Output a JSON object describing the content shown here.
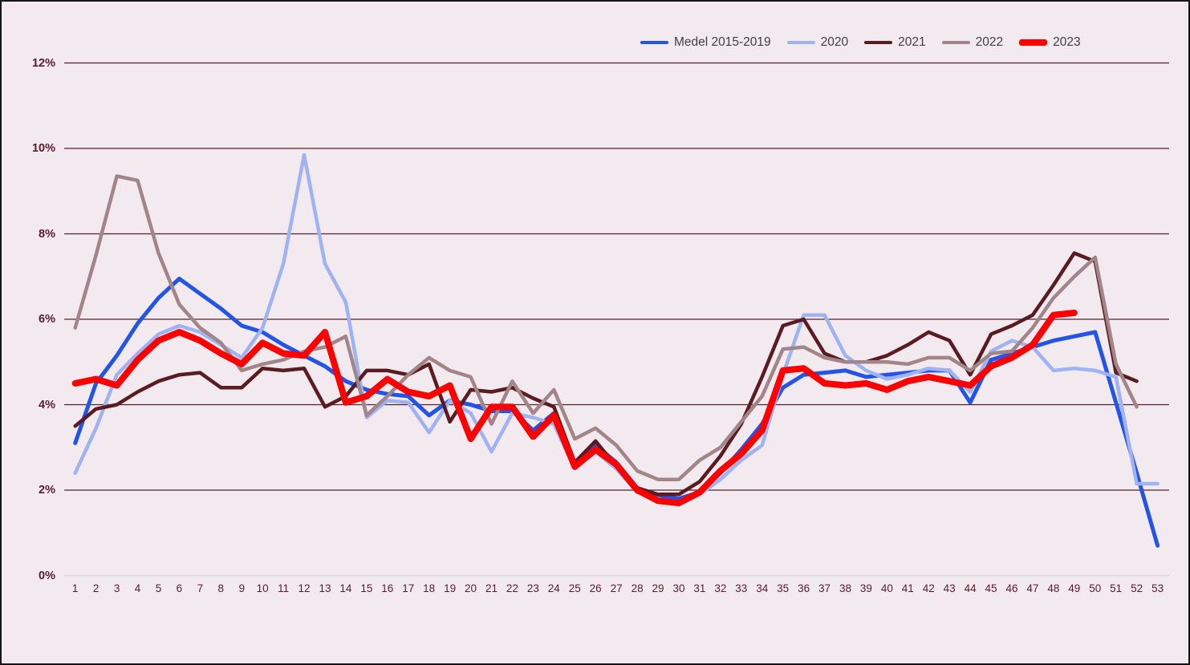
{
  "page": {
    "background_color": "#f2eaee",
    "border_color": "#141414"
  },
  "chart_data": {
    "type": "line",
    "title": "",
    "xlabel": "",
    "ylabel": "",
    "x": [
      1,
      2,
      3,
      4,
      5,
      6,
      7,
      8,
      9,
      10,
      11,
      12,
      13,
      14,
      15,
      16,
      17,
      18,
      19,
      20,
      21,
      22,
      23,
      24,
      25,
      26,
      27,
      28,
      29,
      30,
      31,
      32,
      33,
      34,
      35,
      36,
      37,
      38,
      39,
      40,
      41,
      42,
      43,
      44,
      45,
      46,
      47,
      48,
      49,
      50,
      51,
      52,
      53
    ],
    "y_ticks": [
      "0%",
      "2%",
      "4%",
      "6%",
      "8%",
      "10%",
      "12%"
    ],
    "ylim": [
      0,
      12
    ],
    "grid": "horizontal",
    "gridline_color": "#57222d",
    "zero_line_color": "#d9d9d9",
    "axis_label_color": "#5a1c2b",
    "legend_position": "top-right",
    "legend_text_color": "#3f4045",
    "series": [
      {
        "name": "Medel 2015-2019",
        "color": "#2255e6",
        "width": 5,
        "values": [
          3.1,
          4.5,
          5.15,
          5.9,
          6.5,
          6.95,
          6.6,
          6.25,
          5.85,
          5.7,
          5.4,
          5.15,
          4.9,
          4.55,
          4.35,
          4.25,
          4.2,
          3.75,
          4.1,
          4.0,
          3.85,
          3.85,
          3.4,
          3.8,
          2.6,
          3.05,
          2.65,
          2.05,
          1.85,
          1.8,
          1.95,
          2.4,
          2.95,
          3.55,
          4.4,
          4.7,
          4.75,
          4.8,
          4.65,
          4.7,
          4.75,
          4.8,
          4.8,
          4.05,
          5.05,
          5.2,
          5.35,
          5.5,
          5.6,
          5.7,
          4.05,
          2.4,
          0.7
        ]
      },
      {
        "name": "2020",
        "color": "#9fb3f4",
        "width": 4.5,
        "values": [
          2.4,
          3.45,
          4.7,
          5.2,
          5.65,
          5.85,
          5.7,
          5.4,
          5.1,
          5.8,
          7.3,
          9.85,
          7.3,
          6.4,
          3.7,
          4.1,
          4.05,
          3.35,
          4.1,
          3.8,
          2.9,
          3.8,
          3.7,
          3.55,
          2.5,
          2.9,
          2.5,
          1.95,
          1.8,
          1.65,
          1.9,
          2.25,
          2.7,
          3.05,
          4.7,
          6.1,
          6.1,
          5.15,
          4.8,
          4.6,
          4.7,
          4.85,
          4.8,
          4.3,
          5.25,
          5.5,
          5.35,
          4.8,
          4.85,
          4.8,
          4.65,
          2.15,
          2.15
        ]
      },
      {
        "name": "2021",
        "color": "#5a1b22",
        "width": 4.5,
        "values": [
          3.5,
          3.9,
          4.0,
          4.3,
          4.55,
          4.7,
          4.75,
          4.4,
          4.4,
          4.85,
          4.8,
          4.85,
          3.95,
          4.2,
          4.8,
          4.8,
          4.7,
          4.95,
          3.6,
          4.35,
          4.3,
          4.4,
          4.15,
          3.95,
          2.65,
          3.15,
          2.55,
          2.05,
          1.9,
          1.9,
          2.2,
          2.8,
          3.55,
          4.65,
          5.85,
          6.0,
          5.2,
          5.0,
          5.0,
          5.15,
          5.4,
          5.7,
          5.5,
          4.7,
          5.65,
          5.85,
          6.1,
          6.8,
          7.55,
          7.35,
          4.75,
          4.55,
          null
        ]
      },
      {
        "name": "2022",
        "color": "#a28589",
        "width": 4.5,
        "values": [
          5.8,
          7.5,
          9.35,
          9.25,
          7.55,
          6.35,
          5.8,
          5.45,
          4.8,
          4.95,
          5.05,
          5.25,
          5.35,
          5.6,
          3.75,
          4.2,
          4.7,
          5.1,
          4.8,
          4.65,
          3.55,
          4.55,
          3.8,
          4.35,
          3.2,
          3.45,
          3.05,
          2.45,
          2.25,
          2.25,
          2.7,
          3.0,
          3.6,
          4.2,
          5.3,
          5.35,
          5.1,
          5.0,
          5.0,
          5.0,
          4.95,
          5.1,
          5.1,
          4.8,
          5.2,
          5.25,
          5.8,
          6.5,
          7.0,
          7.45,
          4.95,
          3.95,
          null
        ]
      },
      {
        "name": "2023",
        "color": "#fd0000",
        "width": 8,
        "values": [
          4.5,
          4.6,
          4.45,
          5.05,
          5.5,
          5.7,
          5.5,
          5.2,
          4.95,
          5.45,
          5.2,
          5.15,
          5.7,
          4.05,
          4.2,
          4.6,
          4.3,
          4.2,
          4.45,
          3.2,
          3.95,
          3.95,
          3.25,
          3.75,
          2.55,
          2.95,
          2.6,
          2.0,
          1.75,
          1.7,
          1.95,
          2.45,
          2.85,
          3.4,
          4.8,
          4.85,
          4.5,
          4.45,
          4.5,
          4.35,
          4.55,
          4.65,
          4.55,
          4.45,
          4.9,
          5.1,
          5.4,
          6.1,
          6.15,
          null,
          null,
          null,
          null
        ]
      }
    ]
  }
}
